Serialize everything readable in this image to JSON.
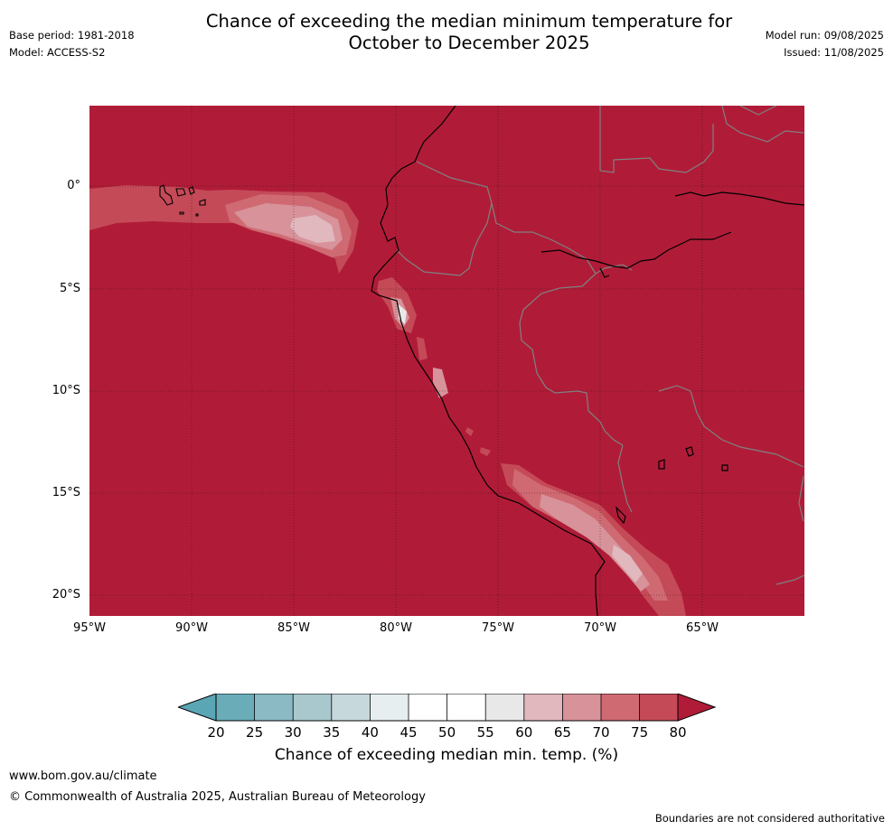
{
  "header": {
    "title_line1": "Chance of exceeding the median minimum temperature for",
    "title_line2": "October to December 2025",
    "base_period": "Base period: 1981-2018",
    "model": "Model: ACCESS-S2",
    "model_run": "Model run: 09/08/2025",
    "issued": "Issued: 11/08/2025"
  },
  "map": {
    "lat_labels": [
      "0°",
      "5°S",
      "10°S",
      "15°S",
      "20°S"
    ],
    "lon_labels": [
      "95°W",
      "90°W",
      "85°W",
      "80°W",
      "75°W",
      "70°W",
      "65°W"
    ],
    "dominant_category": "80",
    "colors": {
      "above_80": "#b01c38",
      "c75_80": "#c44a57",
      "c70_75": "#cf6a73",
      "c65_70": "#d7929a",
      "c60_65": "#e0b8bd",
      "c55_60": "#e9e9e9",
      "coastline": "#000000",
      "borders": "#808080",
      "gridlines": "#000000"
    }
  },
  "colorbar": {
    "ticks": [
      "20",
      "25",
      "30",
      "35",
      "40",
      "45",
      "50",
      "55",
      "60",
      "65",
      "70",
      "75",
      "80"
    ],
    "colors": [
      "#5aa6b4",
      "#6aadb9",
      "#8bbac4",
      "#a9c8cd",
      "#c7d8dc",
      "#e6eef0",
      "#ffffff",
      "#ffffff",
      "#e8e8e8",
      "#e0b8bd",
      "#d7929a",
      "#cf6a73",
      "#c44a57",
      "#b01c38"
    ],
    "label": "Chance of exceeding median min. temp. (%)"
  },
  "footer": {
    "url": "www.bom.gov.au/climate",
    "copyright": "© Commonwealth of Australia 2025, Australian Bureau of Meteorology",
    "disclaimer": "Boundaries are not considered authoritative"
  }
}
